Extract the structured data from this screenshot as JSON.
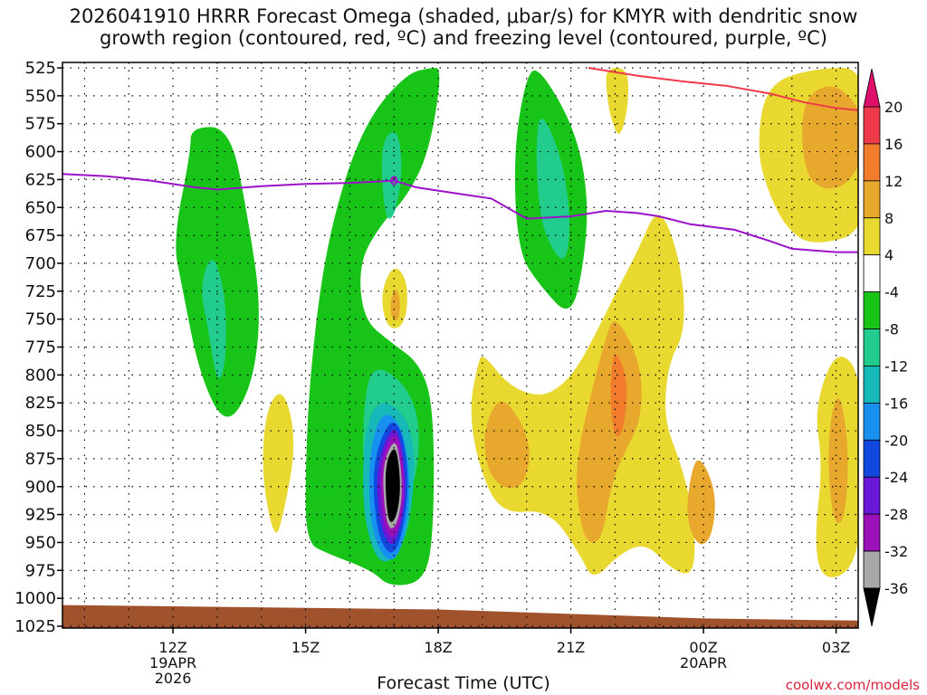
{
  "chart_data": {
    "type": "heatmap",
    "title_line1": "2026041910 HRRR Forecast Omega (shaded, μbar/s) for KMYR with dendritic snow",
    "title_line2": "growth region (contoured, red, ºC) and freezing level (contoured, purple, ºC)",
    "xlabel": "Forecast Time (UTC)",
    "credit": "coolwx.com/models",
    "x_range_hours": [
      9.5,
      27.5
    ],
    "y_range_mb": [
      525,
      1025
    ],
    "y_ticks": [
      "525",
      "550",
      "575",
      "600",
      "625",
      "650",
      "675",
      "700",
      "725",
      "750",
      "775",
      "800",
      "825",
      "850",
      "875",
      "900",
      "925",
      "950",
      "975",
      "1000",
      "1025"
    ],
    "x_ticks": [
      {
        "hour": 12,
        "label": "12Z",
        "sub1": "19APR",
        "sub2": "2026"
      },
      {
        "hour": 15,
        "label": "15Z",
        "sub1": "",
        "sub2": ""
      },
      {
        "hour": 18,
        "label": "18Z",
        "sub1": "",
        "sub2": ""
      },
      {
        "hour": 21,
        "label": "21Z",
        "sub1": "",
        "sub2": ""
      },
      {
        "hour": 24,
        "label": "00Z",
        "sub1": "20APR",
        "sub2": ""
      },
      {
        "hour": 27,
        "label": "03Z",
        "sub1": "",
        "sub2": ""
      }
    ],
    "colorbar": {
      "levels": [
        "20",
        "16",
        "12",
        "8",
        "4",
        "-4",
        "-8",
        "-12",
        "-16",
        "-20",
        "-24",
        "-28",
        "-32",
        "-36"
      ],
      "colors": [
        "#ef3a4a",
        "#f07c2c",
        "#e8a82e",
        "#e8d830",
        "#ffffff",
        "#18c418",
        "#22cc8c",
        "#16b8b8",
        "#1890f0",
        "#1048e0",
        "#6a18d8",
        "#9b10b8",
        "#a8a8a8"
      ],
      "top_arrow": "#e0106a",
      "bottom_arrow": "#000000"
    },
    "freezing_level": [
      [
        9.5,
        620
      ],
      [
        10.5,
        622
      ],
      [
        11.5,
        626
      ],
      [
        12.5,
        632
      ],
      [
        13.0,
        634
      ],
      [
        14.0,
        631
      ],
      [
        15.0,
        629
      ],
      [
        16.0,
        628
      ],
      [
        17.0,
        626
      ],
      [
        17.5,
        632
      ],
      [
        18.5,
        638
      ],
      [
        19.2,
        642
      ],
      [
        20.0,
        660
      ],
      [
        21.0,
        658
      ],
      [
        21.8,
        653
      ],
      [
        22.5,
        655
      ],
      [
        23.0,
        658
      ],
      [
        23.7,
        665
      ],
      [
        24.7,
        670
      ],
      [
        25.5,
        680
      ],
      [
        26.0,
        687
      ],
      [
        27.0,
        690
      ],
      [
        27.5,
        690
      ]
    ],
    "freezing_label": "0",
    "freezing_label_at": [
      17.0,
      626
    ],
    "dendritic_red": [
      [
        21.4,
        525
      ],
      [
        22.5,
        532
      ],
      [
        23.5,
        537
      ],
      [
        24.5,
        541
      ],
      [
        25.5,
        548
      ],
      [
        26.3,
        556
      ],
      [
        27.0,
        561
      ],
      [
        27.5,
        563
      ]
    ],
    "terrain_surface": [
      [
        9.5,
        1006
      ],
      [
        18.0,
        1010
      ],
      [
        21.0,
        1014
      ],
      [
        24.0,
        1018
      ],
      [
        27.5,
        1020
      ]
    ],
    "terrain_color": "#a0522d",
    "shaded_regions": [
      {
        "color": "#18c418",
        "pts": [
          [
            12.4,
            578
          ],
          [
            13.3,
            578
          ],
          [
            13.7,
            660
          ],
          [
            14.0,
            740
          ],
          [
            13.8,
            810
          ],
          [
            13.2,
            848
          ],
          [
            12.6,
            800
          ],
          [
            12.2,
            720
          ],
          [
            12.0,
            680
          ],
          [
            12.4,
            600
          ]
        ]
      },
      {
        "color": "#22cc8c",
        "pts": [
          [
            12.9,
            688
          ],
          [
            13.2,
            730
          ],
          [
            13.2,
            790
          ],
          [
            13.0,
            810
          ],
          [
            12.8,
            760
          ],
          [
            12.6,
            720
          ]
        ]
      },
      {
        "color": "#e8d830",
        "pts": [
          [
            14.5,
            810
          ],
          [
            14.8,
            860
          ],
          [
            14.5,
            925
          ],
          [
            14.3,
            950
          ],
          [
            14.0,
            890
          ],
          [
            14.1,
            830
          ]
        ]
      },
      {
        "color": "#18c418",
        "pts": [
          [
            17.8,
            525
          ],
          [
            18.1,
            525
          ],
          [
            17.8,
            600
          ],
          [
            17.3,
            640
          ],
          [
            16.7,
            665
          ],
          [
            16.2,
            700
          ],
          [
            16.3,
            750
          ],
          [
            16.9,
            770
          ],
          [
            17.6,
            790
          ],
          [
            17.9,
            830
          ],
          [
            17.9,
            940
          ],
          [
            17.7,
            985
          ],
          [
            16.9,
            990
          ],
          [
            16.5,
            975
          ],
          [
            15.5,
            960
          ],
          [
            15.0,
            950
          ],
          [
            15.0,
            880
          ],
          [
            15.1,
            800
          ],
          [
            15.4,
            700
          ],
          [
            15.9,
            620
          ],
          [
            16.5,
            565
          ],
          [
            17.3,
            530
          ]
        ]
      },
      {
        "color": "#22cc8c",
        "pts": [
          [
            17.1,
            580
          ],
          [
            17.2,
            620
          ],
          [
            17.0,
            660
          ],
          [
            16.8,
            660
          ],
          [
            16.7,
            610
          ],
          [
            16.8,
            585
          ]
        ]
      },
      {
        "color": "#22cc8c",
        "pts": [
          [
            16.5,
            790
          ],
          [
            17.2,
            805
          ],
          [
            17.6,
            840
          ],
          [
            17.5,
            900
          ],
          [
            16.9,
            930
          ],
          [
            16.3,
            900
          ],
          [
            16.3,
            830
          ]
        ]
      },
      {
        "color": "#16b8b8",
        "pts": [
          [
            16.6,
            820
          ],
          [
            17.3,
            835
          ],
          [
            17.5,
            880
          ],
          [
            17.3,
            950
          ],
          [
            16.7,
            975
          ],
          [
            16.3,
            930
          ],
          [
            16.3,
            860
          ]
        ]
      },
      {
        "color": "#1890f0",
        "pts": [
          [
            16.7,
            830
          ],
          [
            17.2,
            845
          ],
          [
            17.4,
            900
          ],
          [
            17.2,
            955
          ],
          [
            16.9,
            970
          ],
          [
            16.5,
            945
          ],
          [
            16.4,
            880
          ]
        ]
      },
      {
        "color": "#1048e0",
        "pts": [
          [
            16.9,
            838
          ],
          [
            17.2,
            850
          ],
          [
            17.35,
            900
          ],
          [
            17.15,
            950
          ],
          [
            16.9,
            963
          ],
          [
            16.6,
            940
          ],
          [
            16.5,
            880
          ]
        ]
      },
      {
        "color": "#6a18d8",
        "pts": [
          [
            16.95,
            845
          ],
          [
            17.15,
            855
          ],
          [
            17.3,
            905
          ],
          [
            17.1,
            945
          ],
          [
            16.9,
            955
          ],
          [
            16.65,
            930
          ],
          [
            16.6,
            880
          ]
        ]
      },
      {
        "color": "#9b10b8",
        "pts": [
          [
            16.98,
            850
          ],
          [
            17.15,
            862
          ],
          [
            17.25,
            905
          ],
          [
            17.1,
            940
          ],
          [
            16.9,
            948
          ],
          [
            16.72,
            925
          ],
          [
            16.68,
            880
          ]
        ]
      },
      {
        "color": "#a8a8a8",
        "pts": [
          [
            17.0,
            857
          ],
          [
            17.12,
            870
          ],
          [
            17.2,
            905
          ],
          [
            17.08,
            933
          ],
          [
            16.9,
            940
          ],
          [
            16.78,
            920
          ],
          [
            16.74,
            880
          ]
        ]
      },
      {
        "color": "#000000",
        "pts": [
          [
            17.0,
            863
          ],
          [
            17.1,
            875
          ],
          [
            17.15,
            905
          ],
          [
            17.05,
            928
          ],
          [
            16.9,
            934
          ],
          [
            16.82,
            915
          ],
          [
            16.8,
            880
          ]
        ]
      },
      {
        "color": "#e8d830",
        "pts": [
          [
            17.0,
            700
          ],
          [
            17.3,
            715
          ],
          [
            17.3,
            745
          ],
          [
            17.1,
            760
          ],
          [
            16.8,
            755
          ],
          [
            16.7,
            725
          ]
        ]
      },
      {
        "color": "#e8a82e",
        "pts": [
          [
            17.05,
            720
          ],
          [
            17.15,
            735
          ],
          [
            17.1,
            752
          ],
          [
            16.95,
            750
          ],
          [
            16.9,
            735
          ]
        ]
      },
      {
        "color": "#18c418",
        "pts": [
          [
            20.3,
            525
          ],
          [
            21.1,
            580
          ],
          [
            21.4,
            640
          ],
          [
            21.3,
            700
          ],
          [
            21.0,
            750
          ],
          [
            20.3,
            720
          ],
          [
            19.8,
            690
          ],
          [
            19.7,
            600
          ],
          [
            20.0,
            530
          ]
        ]
      },
      {
        "color": "#22cc8c",
        "pts": [
          [
            20.3,
            560
          ],
          [
            20.8,
            605
          ],
          [
            21.0,
            660
          ],
          [
            20.9,
            700
          ],
          [
            20.6,
            690
          ],
          [
            20.3,
            660
          ],
          [
            20.2,
            600
          ]
        ]
      },
      {
        "color": "#e8d830",
        "pts": [
          [
            23.0,
            645
          ],
          [
            23.5,
            700
          ],
          [
            23.6,
            760
          ],
          [
            23.2,
            790
          ],
          [
            23.1,
            840
          ],
          [
            23.5,
            880
          ],
          [
            23.8,
            930
          ],
          [
            23.8,
            980
          ],
          [
            23.3,
            975
          ],
          [
            22.7,
            950
          ],
          [
            22.1,
            960
          ],
          [
            21.5,
            985
          ],
          [
            21.2,
            960
          ],
          [
            20.5,
            920
          ],
          [
            19.4,
            925
          ],
          [
            18.9,
            880
          ],
          [
            18.7,
            830
          ],
          [
            18.9,
            790
          ],
          [
            19.0,
            780
          ],
          [
            19.6,
            810
          ],
          [
            20.3,
            820
          ],
          [
            20.8,
            810
          ],
          [
            21.2,
            790
          ],
          [
            21.6,
            760
          ],
          [
            22.1,
            720
          ],
          [
            22.5,
            690
          ]
        ]
      },
      {
        "color": "#e8a82e",
        "pts": [
          [
            19.5,
            820
          ],
          [
            20.0,
            850
          ],
          [
            20.1,
            880
          ],
          [
            19.8,
            905
          ],
          [
            19.2,
            895
          ],
          [
            19.0,
            860
          ],
          [
            19.2,
            830
          ]
        ]
      },
      {
        "color": "#e8a82e",
        "pts": [
          [
            22.0,
            745
          ],
          [
            22.6,
            790
          ],
          [
            22.6,
            840
          ],
          [
            22.2,
            870
          ],
          [
            21.9,
            900
          ],
          [
            21.7,
            950
          ],
          [
            21.3,
            950
          ],
          [
            21.1,
            900
          ],
          [
            21.2,
            860
          ],
          [
            21.5,
            810
          ],
          [
            21.8,
            765
          ]
        ]
      },
      {
        "color": "#f07c2c",
        "pts": [
          [
            22.0,
            775
          ],
          [
            22.3,
            805
          ],
          [
            22.2,
            850
          ],
          [
            22.0,
            858
          ],
          [
            21.9,
            830
          ],
          [
            21.9,
            800
          ]
        ]
      },
      {
        "color": "#e8a82e",
        "pts": [
          [
            23.9,
            870
          ],
          [
            24.3,
            905
          ],
          [
            24.2,
            945
          ],
          [
            23.9,
            955
          ],
          [
            23.6,
            930
          ],
          [
            23.7,
            890
          ]
        ]
      },
      {
        "color": "#e8d830",
        "pts": [
          [
            27.0,
            775
          ],
          [
            27.6,
            800
          ],
          [
            27.6,
            920
          ],
          [
            27.4,
            975
          ],
          [
            26.7,
            985
          ],
          [
            26.5,
            950
          ],
          [
            26.7,
            880
          ],
          [
            26.5,
            830
          ]
        ]
      },
      {
        "color": "#e8a82e",
        "pts": [
          [
            27.1,
            815
          ],
          [
            27.3,
            870
          ],
          [
            27.2,
            930
          ],
          [
            26.95,
            935
          ],
          [
            26.8,
            880
          ],
          [
            26.9,
            830
          ]
        ]
      },
      {
        "color": "#e8d830",
        "pts": [
          [
            26.5,
            525
          ],
          [
            27.8,
            525
          ],
          [
            27.8,
            670
          ],
          [
            26.5,
            685
          ],
          [
            25.9,
            670
          ],
          [
            25.5,
            640
          ],
          [
            25.2,
            600
          ],
          [
            25.4,
            540
          ]
        ]
      },
      {
        "color": "#e8a82e",
        "pts": [
          [
            27.0,
            537
          ],
          [
            27.7,
            570
          ],
          [
            27.6,
            610
          ],
          [
            27.1,
            635
          ],
          [
            26.4,
            630
          ],
          [
            26.2,
            590
          ],
          [
            26.3,
            550
          ]
        ]
      },
      {
        "color": "#e8d830",
        "pts": [
          [
            21.8,
            525
          ],
          [
            22.3,
            525
          ],
          [
            22.3,
            560
          ],
          [
            22.1,
            590
          ],
          [
            21.9,
            570
          ],
          [
            21.8,
            545
          ]
        ]
      }
    ]
  }
}
